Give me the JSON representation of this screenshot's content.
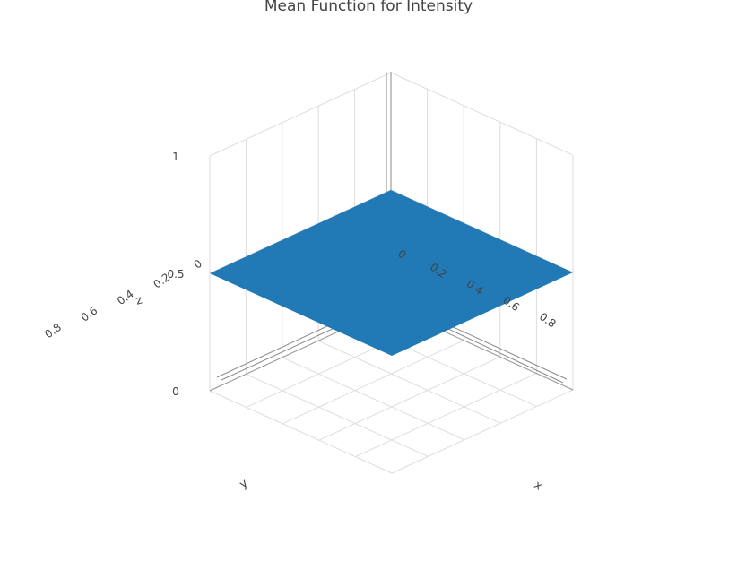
{
  "chart_data": {
    "type": "surface",
    "title": "Mean Function for Intensity",
    "x_axis": {
      "label": "x",
      "range": [
        0,
        1
      ],
      "ticks": [
        0,
        0.2,
        0.4,
        0.6,
        0.8
      ],
      "tick_labels": [
        "0",
        "0.2",
        "0.4",
        "0.6",
        "0.8"
      ]
    },
    "y_axis": {
      "label": "y",
      "range": [
        0,
        1
      ],
      "ticks": [
        0,
        0.2,
        0.4,
        0.6,
        0.8
      ],
      "tick_labels": [
        "0",
        "0.2",
        "0.4",
        "0.6",
        "0.8"
      ]
    },
    "z_axis": {
      "label": "z",
      "range": [
        0,
        1
      ],
      "ticks": [
        0,
        0.5,
        1
      ],
      "tick_labels": [
        "0",
        "0.5",
        "1"
      ]
    },
    "surface": {
      "description_value": 0.5,
      "corners": [
        {
          "x": 0,
          "y": 0,
          "z": 0.5
        },
        {
          "x": 1,
          "y": 0,
          "z": 0.5
        },
        {
          "x": 0,
          "y": 1,
          "z": 0.5
        },
        {
          "x": 1,
          "y": 1,
          "z": 0.5
        }
      ],
      "color": "#1f77b4"
    },
    "grid": true,
    "legend": "none"
  },
  "colors": {
    "grid": "#dddddd",
    "axis_line": "#444444",
    "text": "#444444",
    "surface": "#2179b5"
  }
}
